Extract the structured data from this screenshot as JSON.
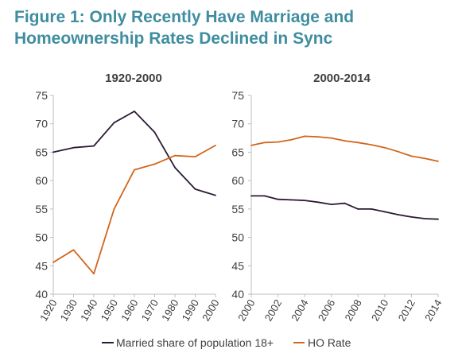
{
  "figure": {
    "title_line1": "Figure 1: Only Recently Have Marriage and",
    "title_line2": "Homeownership Rates Declined in Sync"
  },
  "colors": {
    "title": "#3F8DA0",
    "married": "#2B1B33",
    "ho_rate": "#D2661B",
    "axis": "#BFBFBF",
    "text": "#404040"
  },
  "legend": {
    "position": "bottom-center",
    "items": [
      {
        "label": "Married share of population 18+",
        "color": "#2B1B33"
      },
      {
        "label": "HO Rate",
        "color": "#D2661B"
      }
    ]
  },
  "chart_data": [
    {
      "type": "line",
      "title": "1920-2000",
      "x": [
        1920,
        1930,
        1940,
        1950,
        1960,
        1970,
        1980,
        1990,
        2000
      ],
      "xticks": [
        "1920",
        "1930",
        "1940",
        "1950",
        "1960",
        "1970",
        "1980",
        "1990",
        "2000"
      ],
      "ylim": [
        40,
        75
      ],
      "yticks": [
        40,
        45,
        50,
        55,
        60,
        65,
        70,
        75
      ],
      "grid": false,
      "series": [
        {
          "name": "Married share of population 18+",
          "values": [
            65.0,
            65.8,
            66.1,
            70.2,
            72.2,
            68.5,
            62.3,
            58.5,
            57.4
          ]
        },
        {
          "name": "HO Rate",
          "values": [
            45.6,
            47.8,
            43.6,
            55.0,
            61.9,
            62.9,
            64.4,
            64.2,
            66.2
          ]
        }
      ]
    },
    {
      "type": "line",
      "title": "2000-2014",
      "x": [
        2000,
        2001,
        2002,
        2003,
        2004,
        2005,
        2006,
        2007,
        2008,
        2009,
        2010,
        2011,
        2012,
        2013,
        2014
      ],
      "xticks": [
        "2000",
        "2002",
        "2004",
        "2006",
        "2008",
        "2010",
        "2012",
        "2014"
      ],
      "xtick_values": [
        2000,
        2002,
        2004,
        2006,
        2008,
        2010,
        2012,
        2014
      ],
      "ylim": [
        40,
        75
      ],
      "yticks": [
        40,
        45,
        50,
        55,
        60,
        65,
        70,
        75
      ],
      "grid": false,
      "series": [
        {
          "name": "Married share of population 18+",
          "values": [
            57.3,
            57.3,
            56.7,
            56.6,
            56.5,
            56.2,
            55.8,
            56.0,
            55.0,
            55.0,
            54.5,
            54.0,
            53.6,
            53.3,
            53.2
          ]
        },
        {
          "name": "HO Rate",
          "values": [
            66.2,
            66.7,
            66.8,
            67.2,
            67.8,
            67.7,
            67.5,
            67.0,
            66.7,
            66.3,
            65.8,
            65.1,
            64.3,
            63.9,
            63.4
          ]
        }
      ]
    }
  ]
}
